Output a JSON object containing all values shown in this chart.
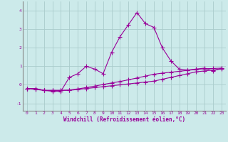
{
  "xlabel": "Windchill (Refroidissement éolien,°C)",
  "x": [
    0,
    1,
    2,
    3,
    4,
    5,
    6,
    7,
    8,
    9,
    10,
    11,
    12,
    13,
    14,
    15,
    16,
    17,
    18,
    19,
    20,
    21,
    22,
    23
  ],
  "line1": [
    -0.2,
    -0.2,
    -0.3,
    -0.3,
    -0.3,
    -0.3,
    -0.25,
    -0.2,
    -0.15,
    -0.1,
    -0.05,
    0.0,
    0.05,
    0.1,
    0.15,
    0.2,
    0.3,
    0.4,
    0.5,
    0.6,
    0.7,
    0.75,
    0.8,
    0.85
  ],
  "line2": [
    -0.2,
    -0.25,
    -0.3,
    -0.3,
    -0.3,
    -0.28,
    -0.22,
    -0.15,
    -0.07,
    0.02,
    0.1,
    0.18,
    0.27,
    0.37,
    0.47,
    0.57,
    0.63,
    0.68,
    0.73,
    0.78,
    0.83,
    0.87,
    0.88,
    0.9
  ],
  "line3": [
    -0.2,
    -0.2,
    -0.3,
    -0.35,
    -0.35,
    0.4,
    0.6,
    1.0,
    0.85,
    0.6,
    1.75,
    2.6,
    3.25,
    3.9,
    3.3,
    3.1,
    2.0,
    1.3,
    0.85,
    0.8,
    0.85,
    0.9,
    0.75,
    0.9
  ],
  "bg_color": "#cceaea",
  "line_color": "#990099",
  "grid_color": "#aacccc",
  "xlim": [
    -0.5,
    23.5
  ],
  "ylim": [
    -1.4,
    4.5
  ],
  "yticks": [
    -1,
    0,
    1,
    2,
    3,
    4
  ],
  "xticks": [
    0,
    1,
    2,
    3,
    4,
    5,
    6,
    7,
    8,
    9,
    10,
    11,
    12,
    13,
    14,
    15,
    16,
    17,
    18,
    19,
    20,
    21,
    22,
    23
  ],
  "marker": "+",
  "markersize": 4,
  "linewidth": 0.8
}
